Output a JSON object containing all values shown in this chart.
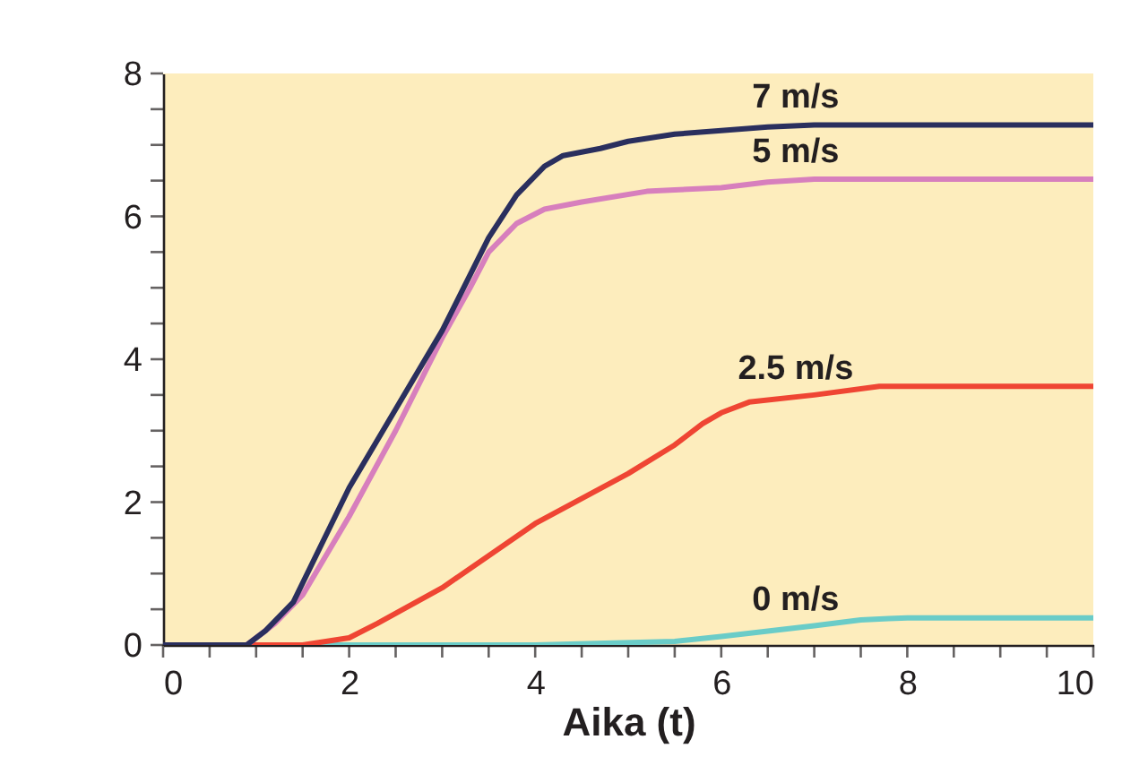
{
  "chart_data": {
    "type": "line",
    "xlabel": "Aika (t)",
    "xlim": [
      0,
      10
    ],
    "ylim": [
      0,
      8
    ],
    "xticks": [
      0,
      {
        "value": 0.5,
        "label": null
      },
      {
        "value": 1,
        "label": null
      },
      {
        "value": 1.5,
        "label": null
      },
      2,
      {
        "value": 2.5,
        "label": null
      },
      {
        "value": 3,
        "label": null
      },
      {
        "value": 3.5,
        "label": null
      },
      4,
      {
        "value": 4.5,
        "label": null
      },
      {
        "value": 5,
        "label": null
      },
      {
        "value": 5.5,
        "label": null
      },
      6,
      {
        "value": 6.5,
        "label": null
      },
      {
        "value": 7,
        "label": null
      },
      {
        "value": 7.5,
        "label": null
      },
      8,
      {
        "value": 8.5,
        "label": null
      },
      {
        "value": 9,
        "label": null
      },
      {
        "value": 9.5,
        "label": null
      },
      10
    ],
    "yticks": [
      0,
      {
        "value": 0.5,
        "label": null
      },
      {
        "value": 1,
        "label": null
      },
      {
        "value": 1.5,
        "label": null
      },
      2,
      {
        "value": 2.5,
        "label": null
      },
      {
        "value": 3,
        "label": null
      },
      {
        "value": 3.5,
        "label": null
      },
      4,
      {
        "value": 4.5,
        "label": null
      },
      {
        "value": 5,
        "label": null
      },
      {
        "value": 5.5,
        "label": null
      },
      6,
      {
        "value": 6.5,
        "label": null
      },
      {
        "value": 7,
        "label": null
      },
      {
        "value": 7.5,
        "label": null
      },
      8
    ],
    "grid": false,
    "legend": false,
    "marker": "none",
    "line_style": "solid",
    "series": [
      {
        "name": "0 m/s",
        "color": "#6accc8",
        "x": [
          0,
          2,
          4,
          5.5,
          6,
          7,
          7.5,
          7.8,
          8,
          10
        ],
        "values": [
          0,
          0,
          0,
          0.05,
          0.12,
          0.27,
          0.35,
          0.37,
          0.38,
          0.38
        ]
      },
      {
        "name": "2.5 m/s",
        "color": "#ef4533",
        "x": [
          0.9,
          1.5,
          2,
          2.3,
          3,
          4,
          5,
          5.5,
          5.8,
          6,
          6.3,
          7,
          7.7,
          10
        ],
        "values": [
          0,
          0,
          0.1,
          0.3,
          0.8,
          1.7,
          2.4,
          2.8,
          3.1,
          3.25,
          3.4,
          3.5,
          3.62,
          3.62
        ]
      },
      {
        "name": "5 m/s",
        "color": "#d77fbd",
        "x": [
          0.7,
          0.9,
          1.2,
          1.5,
          2,
          2.5,
          3,
          3.3,
          3.5,
          3.8,
          4.1,
          4.5,
          5.2,
          5.5,
          6,
          6.5,
          7,
          10
        ],
        "values": [
          0,
          0,
          0.3,
          0.7,
          1.8,
          3.0,
          4.3,
          5.0,
          5.5,
          5.9,
          6.1,
          6.2,
          6.35,
          6.37,
          6.4,
          6.48,
          6.52,
          6.52
        ]
      },
      {
        "name": "7 m/s",
        "color": "#2a2f5e",
        "x": [
          0,
          0.5,
          0.7,
          0.9,
          1.1,
          1.4,
          2,
          2.5,
          3,
          3.5,
          3.8,
          4.1,
          4.3,
          4.7,
          5,
          5.5,
          6,
          6.5,
          7,
          10
        ],
        "values": [
          0,
          0,
          0,
          0,
          0.2,
          0.6,
          2.2,
          3.3,
          4.4,
          5.7,
          6.3,
          6.7,
          6.85,
          6.95,
          7.05,
          7.15,
          7.2,
          7.25,
          7.28,
          7.28
        ]
      }
    ]
  }
}
